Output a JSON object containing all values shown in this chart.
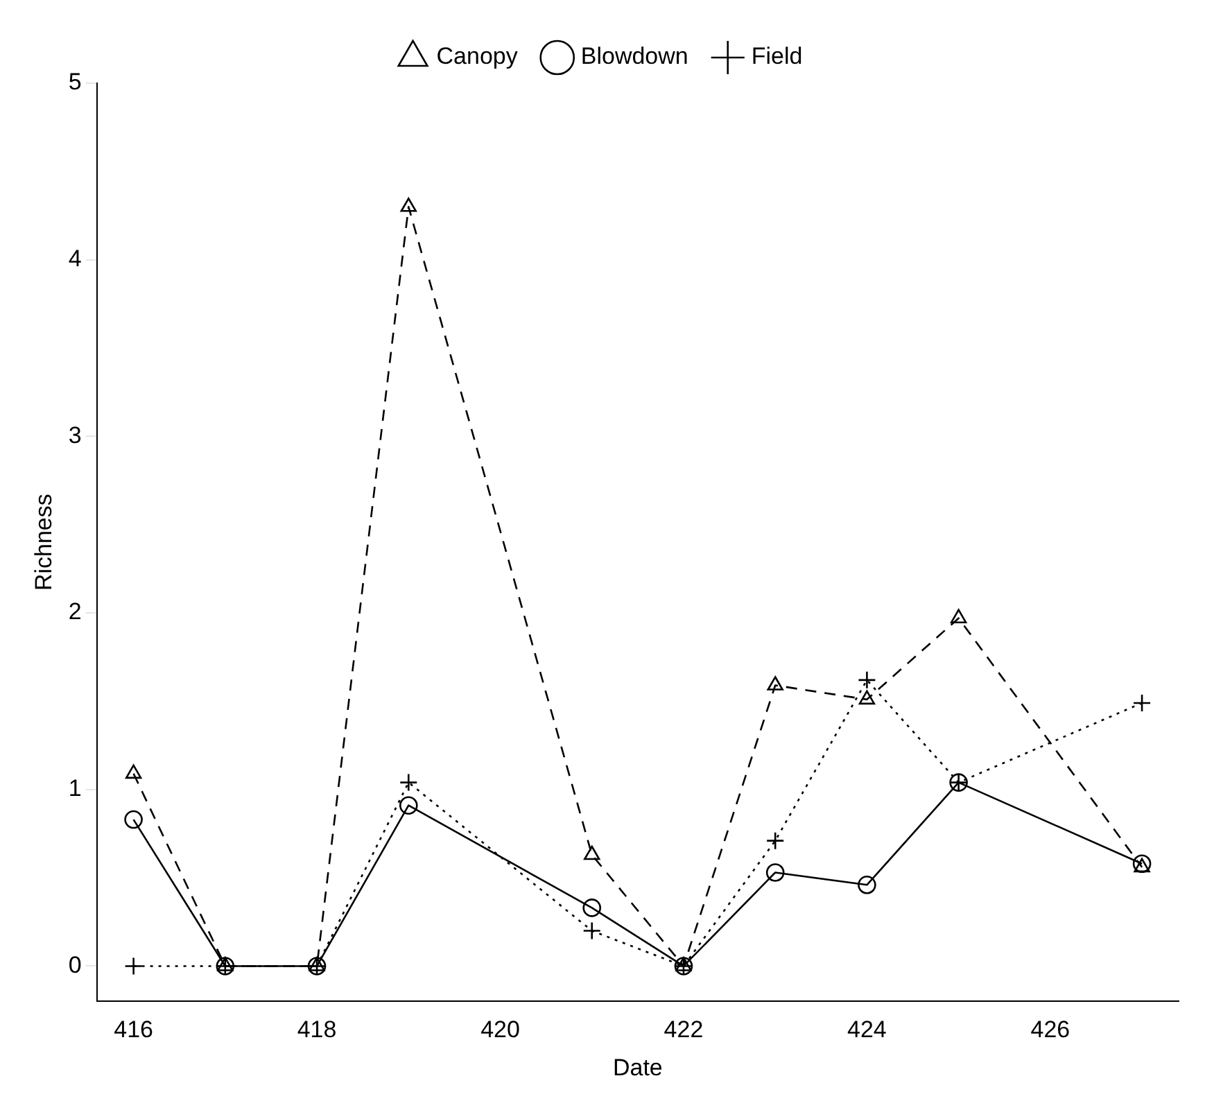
{
  "chart_data": {
    "type": "line",
    "xlabel": "Date",
    "ylabel": "Richness",
    "x": [
      416,
      417,
      418,
      419,
      421,
      422,
      423,
      424,
      425,
      427
    ],
    "xlim": [
      415.6,
      427.4
    ],
    "xticks": [
      416,
      418,
      420,
      422,
      424,
      426
    ],
    "ylim": [
      -0.2,
      5
    ],
    "yticks": [
      0,
      1,
      2,
      3,
      4,
      5
    ],
    "grid": false,
    "legend": "top",
    "series": [
      {
        "name": "Canopy",
        "color": "#000000",
        "marker": "triangle",
        "line_style": "dashed",
        "values": [
          1.09,
          0,
          0,
          4.3,
          0.63,
          0,
          1.59,
          1.51,
          1.97,
          0.56
        ]
      },
      {
        "name": "Blowdown",
        "color": "#000000",
        "marker": "circle",
        "line_style": "solid",
        "values": [
          0.83,
          0,
          0,
          0.91,
          0.33,
          0,
          0.53,
          0.46,
          1.04,
          0.58
        ]
      },
      {
        "name": "Field",
        "color": "#000000",
        "marker": "cross",
        "line_style": "dotted",
        "values": [
          0,
          0,
          0,
          1.04,
          0.2,
          0,
          0.71,
          1.62,
          1.04,
          1.49
        ]
      }
    ]
  }
}
